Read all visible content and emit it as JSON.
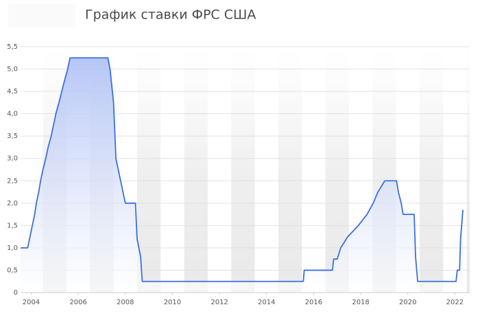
{
  "chart_data": {
    "type": "area",
    "title": "График ставки ФРС США",
    "x": [
      2003.55,
      2003.85,
      2003.95,
      2004.05,
      2004.15,
      2004.22,
      2004.32,
      2004.4,
      2004.5,
      2004.62,
      2004.72,
      2004.85,
      2004.95,
      2005.05,
      2005.18,
      2005.3,
      2005.42,
      2005.55,
      2005.65,
      2005.78,
      2005.88,
      2005.98,
      2006.13,
      2007.26,
      2007.35,
      2007.45,
      2007.5,
      2007.6,
      2007.8,
      2007.9,
      2008.0,
      2008.43,
      2008.5,
      2008.65,
      2008.72,
      2015.56,
      2015.6,
      2016.8,
      2016.85,
      2017.0,
      2017.15,
      2017.45,
      2017.9,
      2018.27,
      2018.53,
      2018.73,
      2019.02,
      2019.52,
      2019.6,
      2019.72,
      2019.8,
      2020.27,
      2020.33,
      2020.42,
      2022.05,
      2022.1,
      2022.2,
      2022.24,
      2022.34
    ],
    "values": [
      1.0,
      1.0,
      1.25,
      1.5,
      1.75,
      2.0,
      2.25,
      2.5,
      2.75,
      3.0,
      3.25,
      3.5,
      3.75,
      4.0,
      4.25,
      4.5,
      4.75,
      5.0,
      5.25,
      5.25,
      5.25,
      5.25,
      5.25,
      5.25,
      5.0,
      4.5,
      4.25,
      3.0,
      2.5,
      2.25,
      2.0,
      2.0,
      1.2,
      0.8,
      0.25,
      0.25,
      0.5,
      0.5,
      0.75,
      0.75,
      1.0,
      1.25,
      1.5,
      1.75,
      2.0,
      2.25,
      2.5,
      2.5,
      2.25,
      2.0,
      1.75,
      1.75,
      0.8,
      0.25,
      0.25,
      0.5,
      0.5,
      1.2,
      1.85
    ],
    "color": "#3c6fdc",
    "xlim": [
      2003.55,
      2022.63
    ],
    "xticks": [
      2004,
      2006,
      2008,
      2010,
      2012,
      2014,
      2016,
      2018,
      2020,
      2022
    ],
    "ylim": [
      0,
      5.5
    ],
    "yticks": [
      0,
      {
        "value": 0.5,
        "label": "0,5"
      },
      {
        "value": 1,
        "label": "1,0"
      },
      {
        "value": 1.5,
        "label": "1,5"
      },
      {
        "value": 2,
        "label": "2,0"
      },
      {
        "value": 2.5,
        "label": "2,5"
      },
      {
        "value": 3,
        "label": "3,0"
      },
      {
        "value": 3.5,
        "label": "3,5"
      },
      {
        "value": 4,
        "label": "4,0"
      },
      {
        "value": 4.5,
        "label": "4,5"
      },
      {
        "value": 5,
        "label": "5,0"
      },
      {
        "value": 5.5,
        "label": "5,5"
      }
    ],
    "grid": true
  }
}
